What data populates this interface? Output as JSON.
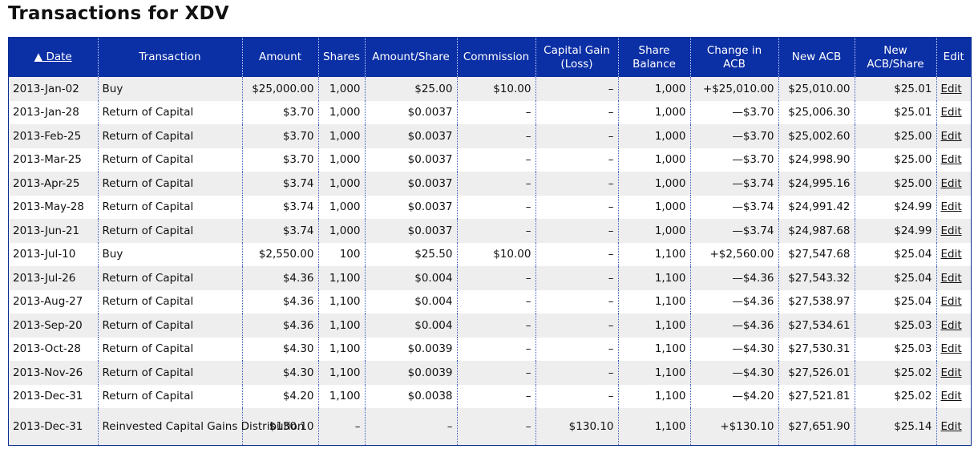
{
  "page": {
    "title": "Transactions for XDV"
  },
  "table": {
    "sort_arrow": "▲",
    "headers": {
      "date": "Date",
      "transaction": "Transaction",
      "amount": "Amount",
      "shares": "Shares",
      "amount_share": "Amount/Share",
      "commission": "Commission",
      "capital_gain_1": "Capital Gain",
      "capital_gain_2": "(Loss)",
      "share_balance_1": "Share",
      "share_balance_2": "Balance",
      "change_acb_1": "Change in",
      "change_acb_2": "ACB",
      "new_acb": "New ACB",
      "new_acb_share_1": "New",
      "new_acb_share_2": "ACB/Share",
      "edit": "Edit"
    },
    "rows": [
      {
        "date": "2013-Jan-02",
        "transaction": "Buy",
        "amount": "$25,000.00",
        "shares": "1,000",
        "amount_share": "$25.00",
        "commission": "$10.00",
        "capital_gain": "–",
        "share_balance": "1,000",
        "change_acb": "+$25,010.00",
        "new_acb": "$25,010.00",
        "new_acb_share": "$25.01",
        "edit": "Edit"
      },
      {
        "date": "2013-Jan-28",
        "transaction": "Return of Capital",
        "amount": "$3.70",
        "shares": "1,000",
        "amount_share": "$0.0037",
        "commission": "–",
        "capital_gain": "–",
        "share_balance": "1,000",
        "change_acb": "—$3.70",
        "new_acb": "$25,006.30",
        "new_acb_share": "$25.01",
        "edit": "Edit"
      },
      {
        "date": "2013-Feb-25",
        "transaction": "Return of Capital",
        "amount": "$3.70",
        "shares": "1,000",
        "amount_share": "$0.0037",
        "commission": "–",
        "capital_gain": "–",
        "share_balance": "1,000",
        "change_acb": "—$3.70",
        "new_acb": "$25,002.60",
        "new_acb_share": "$25.00",
        "edit": "Edit"
      },
      {
        "date": "2013-Mar-25",
        "transaction": "Return of Capital",
        "amount": "$3.70",
        "shares": "1,000",
        "amount_share": "$0.0037",
        "commission": "–",
        "capital_gain": "–",
        "share_balance": "1,000",
        "change_acb": "—$3.70",
        "new_acb": "$24,998.90",
        "new_acb_share": "$25.00",
        "edit": "Edit"
      },
      {
        "date": "2013-Apr-25",
        "transaction": "Return of Capital",
        "amount": "$3.74",
        "shares": "1,000",
        "amount_share": "$0.0037",
        "commission": "–",
        "capital_gain": "–",
        "share_balance": "1,000",
        "change_acb": "—$3.74",
        "new_acb": "$24,995.16",
        "new_acb_share": "$25.00",
        "edit": "Edit"
      },
      {
        "date": "2013-May-28",
        "transaction": "Return of Capital",
        "amount": "$3.74",
        "shares": "1,000",
        "amount_share": "$0.0037",
        "commission": "–",
        "capital_gain": "–",
        "share_balance": "1,000",
        "change_acb": "—$3.74",
        "new_acb": "$24,991.42",
        "new_acb_share": "$24.99",
        "edit": "Edit"
      },
      {
        "date": "2013-Jun-21",
        "transaction": "Return of Capital",
        "amount": "$3.74",
        "shares": "1,000",
        "amount_share": "$0.0037",
        "commission": "–",
        "capital_gain": "–",
        "share_balance": "1,000",
        "change_acb": "—$3.74",
        "new_acb": "$24,987.68",
        "new_acb_share": "$24.99",
        "edit": "Edit"
      },
      {
        "date": "2013-Jul-10",
        "transaction": "Buy",
        "amount": "$2,550.00",
        "shares": "100",
        "amount_share": "$25.50",
        "commission": "$10.00",
        "capital_gain": "–",
        "share_balance": "1,100",
        "change_acb": "+$2,560.00",
        "new_acb": "$27,547.68",
        "new_acb_share": "$25.04",
        "edit": "Edit"
      },
      {
        "date": "2013-Jul-26",
        "transaction": "Return of Capital",
        "amount": "$4.36",
        "shares": "1,100",
        "amount_share": "$0.004",
        "commission": "–",
        "capital_gain": "–",
        "share_balance": "1,100",
        "change_acb": "—$4.36",
        "new_acb": "$27,543.32",
        "new_acb_share": "$25.04",
        "edit": "Edit"
      },
      {
        "date": "2013-Aug-27",
        "transaction": "Return of Capital",
        "amount": "$4.36",
        "shares": "1,100",
        "amount_share": "$0.004",
        "commission": "–",
        "capital_gain": "–",
        "share_balance": "1,100",
        "change_acb": "—$4.36",
        "new_acb": "$27,538.97",
        "new_acb_share": "$25.04",
        "edit": "Edit"
      },
      {
        "date": "2013-Sep-20",
        "transaction": "Return of Capital",
        "amount": "$4.36",
        "shares": "1,100",
        "amount_share": "$0.004",
        "commission": "–",
        "capital_gain": "–",
        "share_balance": "1,100",
        "change_acb": "—$4.36",
        "new_acb": "$27,534.61",
        "new_acb_share": "$25.03",
        "edit": "Edit"
      },
      {
        "date": "2013-Oct-28",
        "transaction": "Return of Capital",
        "amount": "$4.30",
        "shares": "1,100",
        "amount_share": "$0.0039",
        "commission": "–",
        "capital_gain": "–",
        "share_balance": "1,100",
        "change_acb": "—$4.30",
        "new_acb": "$27,530.31",
        "new_acb_share": "$25.03",
        "edit": "Edit"
      },
      {
        "date": "2013-Nov-26",
        "transaction": "Return of Capital",
        "amount": "$4.30",
        "shares": "1,100",
        "amount_share": "$0.0039",
        "commission": "–",
        "capital_gain": "–",
        "share_balance": "1,100",
        "change_acb": "—$4.30",
        "new_acb": "$27,526.01",
        "new_acb_share": "$25.02",
        "edit": "Edit"
      },
      {
        "date": "2013-Dec-31",
        "transaction": "Return of Capital",
        "amount": "$4.20",
        "shares": "1,100",
        "amount_share": "$0.0038",
        "commission": "–",
        "capital_gain": "–",
        "share_balance": "1,100",
        "change_acb": "—$4.20",
        "new_acb": "$27,521.81",
        "new_acb_share": "$25.02",
        "edit": "Edit"
      },
      {
        "date": "2013-Dec-31",
        "transaction": "Reinvested Capital Gains Distribution",
        "amount": "$130.10",
        "shares": "–",
        "amount_share": "–",
        "commission": "–",
        "capital_gain": "$130.10",
        "share_balance": "1,100",
        "change_acb": "+$130.10",
        "new_acb": "$27,651.90",
        "new_acb_share": "$25.14",
        "edit": "Edit",
        "tall": true
      }
    ]
  }
}
